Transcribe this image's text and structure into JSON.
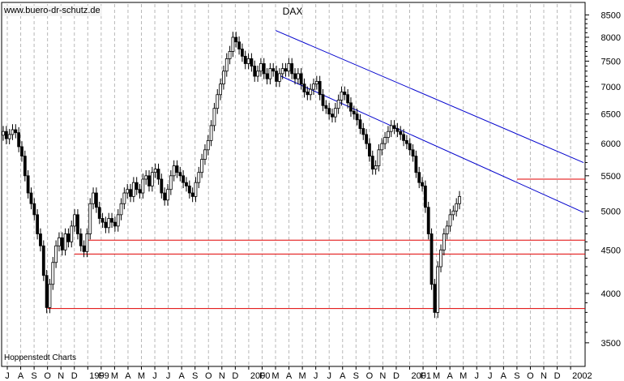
{
  "watermark": "www.buero-dr-schutz.de",
  "source": "Hoppenstedt Charts",
  "chart_data": {
    "type": "candlestick",
    "title": "DAX",
    "y_axis": {
      "scale": "log",
      "position": "right",
      "ticks": [
        3500,
        4000,
        4500,
        5000,
        5500,
        6000,
        6500,
        7000,
        7500,
        8000,
        8500
      ]
    },
    "x_axis": {
      "tick_labels": [
        "J",
        "A",
        "S",
        "O",
        "N",
        "D",
        "1999",
        "F",
        "M",
        "A",
        "M",
        "J",
        "J",
        "A",
        "S",
        "O",
        "N",
        "D",
        "2000",
        "F",
        "M",
        "A",
        "M",
        "J",
        "J",
        "A",
        "S",
        "O",
        "N",
        "D",
        "2001",
        "F",
        "M",
        "A",
        "M",
        "J",
        "J",
        "A",
        "S",
        "O",
        "N",
        "D",
        "2002"
      ]
    },
    "grid": true,
    "weekly_close": [
      6200,
      6080,
      6150,
      6230,
      6180,
      5950,
      5800,
      5500,
      5250,
      5100,
      4950,
      4700,
      4550,
      4200,
      3850,
      4100,
      4350,
      4550,
      4650,
      4500,
      4700,
      4600,
      4800,
      4950,
      4700,
      4550,
      4480,
      4700,
      5100,
      5250,
      5050,
      4900,
      4850,
      4780,
      4900,
      4850,
      4800,
      4950,
      5100,
      5250,
      5300,
      5200,
      5400,
      5300,
      5250,
      5450,
      5500,
      5350,
      5550,
      5600,
      5450,
      5250,
      5150,
      5300,
      5500,
      5650,
      5550,
      5500,
      5400,
      5350,
      5250,
      5200,
      5400,
      5550,
      5750,
      5900,
      6050,
      6300,
      6600,
      6850,
      7050,
      7300,
      7550,
      7700,
      8000,
      7900,
      7750,
      7600,
      7450,
      7550,
      7400,
      7200,
      7300,
      7450,
      7250,
      7150,
      7350,
      7300,
      7100,
      7250,
      7350,
      7300,
      7450,
      7250,
      7150,
      7250,
      7050,
      6900,
      6850,
      6950,
      7050,
      7100,
      6850,
      6650,
      6600,
      6500,
      6450,
      6600,
      6750,
      6900,
      6850,
      6700,
      6550,
      6500,
      6400,
      6250,
      6150,
      6000,
      5800,
      5600,
      5650,
      5900,
      6000,
      6100,
      6200,
      6300,
      6250,
      6200,
      6150,
      6050,
      6000,
      5900,
      5800,
      5550,
      5400,
      5350,
      5050,
      4700,
      4100,
      3800,
      4300,
      4500,
      4700,
      4800,
      4950,
      5000,
      5100,
      5200
    ],
    "support_lines": [
      {
        "level": 3840,
        "start": "1998-10"
      },
      {
        "level": 4450,
        "start": "1998-12"
      },
      {
        "level": 4620,
        "start": "1999-01"
      },
      {
        "level": 5450,
        "start": "2001-09"
      }
    ],
    "trend_channel": {
      "upper": {
        "from": {
          "date": "2000-03",
          "value": 8150
        },
        "to": {
          "date": "2002-01",
          "value": 5700
        }
      },
      "lower": {
        "from": {
          "date": "2000-03",
          "value": 7250
        },
        "to": {
          "date": "2002-01",
          "value": 4980
        }
      }
    },
    "colors": {
      "candles": "#000000",
      "grid": "#b8b8b8",
      "support": "#e00000",
      "channel": "#0000cc"
    }
  }
}
